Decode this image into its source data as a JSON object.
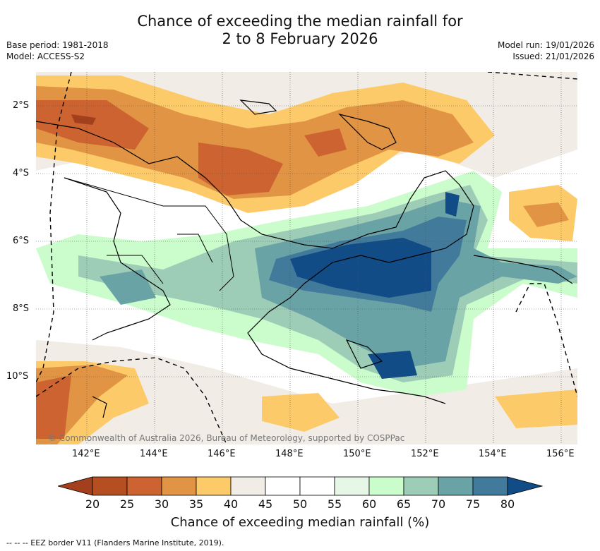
{
  "title": {
    "line1": "Chance of exceeding the median rainfall for",
    "line2": "2 to 8 February 2026"
  },
  "meta": {
    "base_period": "Base period: 1981-2018",
    "model": "Model: ACCESS-S2",
    "model_run": "Model run: 19/01/2026",
    "issued": "Issued: 21/01/2026"
  },
  "axes": {
    "lat_labels": [
      "2°S",
      "4°S",
      "6°S",
      "8°S",
      "10°S"
    ],
    "lon_labels": [
      "142°E",
      "144°E",
      "146°E",
      "148°E",
      "150°E",
      "152°E",
      "154°E",
      "156°E"
    ]
  },
  "colorbar": {
    "ticks": [
      "20",
      "25",
      "30",
      "35",
      "40",
      "45",
      "50",
      "55",
      "60",
      "65",
      "70",
      "75",
      "80"
    ],
    "colors": [
      "#a33f1c",
      "#b54e21",
      "#cc6330",
      "#e09444",
      "#fdca6a",
      "#f1ede6",
      "#ffffff",
      "#ffffff",
      "#e7f7e7",
      "#cbfccb",
      "#9dcdb7",
      "#6aa3a6",
      "#427a9c",
      "#114c86"
    ],
    "label": "Chance of exceeding median rainfall (%)"
  },
  "copyright": "© Commonwealth of Australia 2026, Bureau of Meteorology, supported by COSPPac",
  "legend_eez": "--  --  -- EEZ border V11 (Flanders Marine Institute, 2019)."
}
